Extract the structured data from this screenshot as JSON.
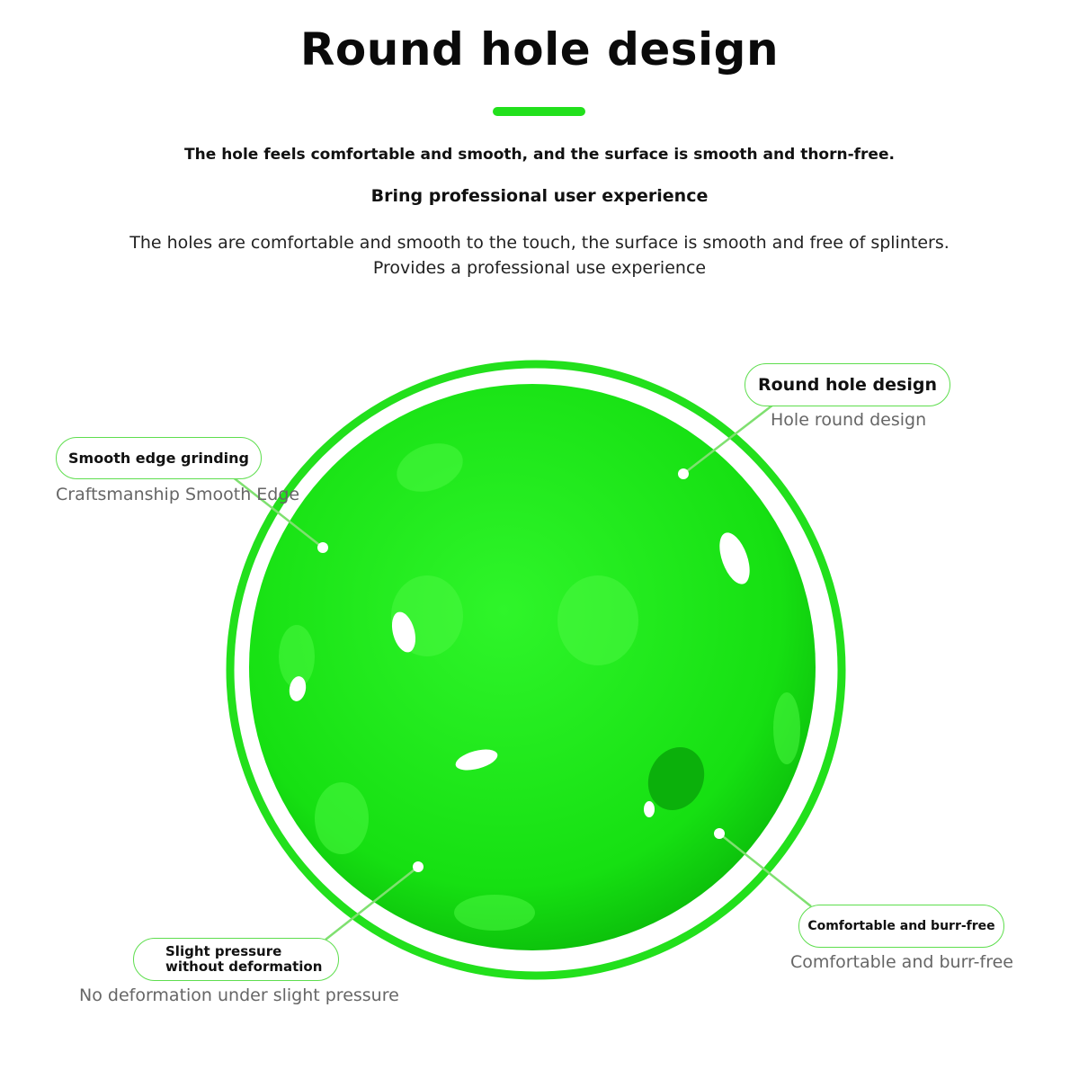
{
  "header": {
    "title": "Round hole design",
    "subtitle_1": "The hole feels comfortable and smooth, and the surface is smooth and thorn-free.",
    "subtitle_2": "Bring professional user experience",
    "description_line_1": "The holes are comfortable and smooth to the touch, the surface is smooth and free of splinters.",
    "description_line_2": "Provides a professional use experience"
  },
  "colors": {
    "accent": "#22e01c",
    "ball": "#1ee81a",
    "pill_border": "#5ede4e"
  },
  "callouts": [
    {
      "label": "Round hole design",
      "caption": "Hole round design"
    },
    {
      "label": "Smooth edge grinding",
      "caption": "Craftsmanship Smooth Edge"
    },
    {
      "label_line_1": "Slight pressure",
      "label_line_2": "without deformation",
      "caption": "No deformation under slight pressure"
    },
    {
      "label": "Comfortable and burr-free",
      "caption": "Comfortable and burr-free"
    }
  ]
}
